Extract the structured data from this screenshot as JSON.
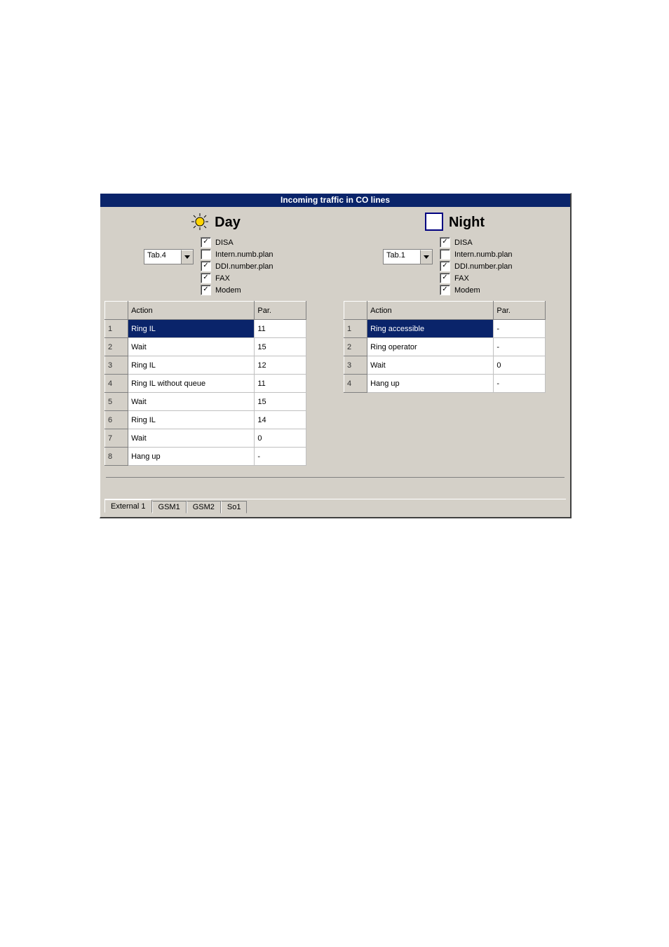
{
  "window": {
    "title": "Incoming traffic in CO lines"
  },
  "day": {
    "label": "Day",
    "tab_select": "Tab.4",
    "options": [
      {
        "label": "DISA",
        "checked": true
      },
      {
        "label": "Intern.numb.plan",
        "checked": false
      },
      {
        "label": "DDI.number.plan",
        "checked": true
      },
      {
        "label": "FAX",
        "checked": true
      },
      {
        "label": "Modem",
        "checked": true
      }
    ],
    "columns": {
      "action": "Action",
      "par": "Par."
    },
    "rows": [
      {
        "n": "1",
        "action": "Ring IL",
        "par": "11",
        "selected": true
      },
      {
        "n": "2",
        "action": "Wait",
        "par": "15",
        "selected": false
      },
      {
        "n": "3",
        "action": "Ring IL",
        "par": "12",
        "selected": false
      },
      {
        "n": "4",
        "action": "Ring IL without queue",
        "par": "11",
        "selected": false
      },
      {
        "n": "5",
        "action": "Wait",
        "par": "15",
        "selected": false
      },
      {
        "n": "6",
        "action": "Ring IL",
        "par": "14",
        "selected": false
      },
      {
        "n": "7",
        "action": "Wait",
        "par": "0",
        "selected": false
      },
      {
        "n": "8",
        "action": "Hang up",
        "par": "-",
        "selected": false
      }
    ]
  },
  "night": {
    "label": "Night",
    "tab_select": "Tab.1",
    "options": [
      {
        "label": "DISA",
        "checked": true
      },
      {
        "label": "Intern.numb.plan",
        "checked": false
      },
      {
        "label": "DDI.number.plan",
        "checked": true
      },
      {
        "label": "FAX",
        "checked": true
      },
      {
        "label": "Modem",
        "checked": true
      }
    ],
    "columns": {
      "action": "Action",
      "par": "Par."
    },
    "rows": [
      {
        "n": "1",
        "action": "Ring accessible",
        "par": "-",
        "selected": true
      },
      {
        "n": "2",
        "action": "Ring operator",
        "par": "-",
        "selected": false
      },
      {
        "n": "3",
        "action": "Wait",
        "par": "0",
        "selected": false
      },
      {
        "n": "4",
        "action": "Hang up",
        "par": "-",
        "selected": false
      }
    ]
  },
  "tabs": [
    {
      "label": "External 1",
      "active": true
    },
    {
      "label": "GSM1",
      "active": false
    },
    {
      "label": "GSM2",
      "active": false
    },
    {
      "label": "So1",
      "active": false
    }
  ],
  "colors": {
    "titlebar_bg": "#0a246a",
    "titlebar_fg": "#ffffff",
    "panel_bg": "#d4d0c8",
    "grid_border": "#808080",
    "cell_border": "#c0c0c0",
    "selected_bg": "#0a246a",
    "selected_fg": "#ffffff"
  }
}
